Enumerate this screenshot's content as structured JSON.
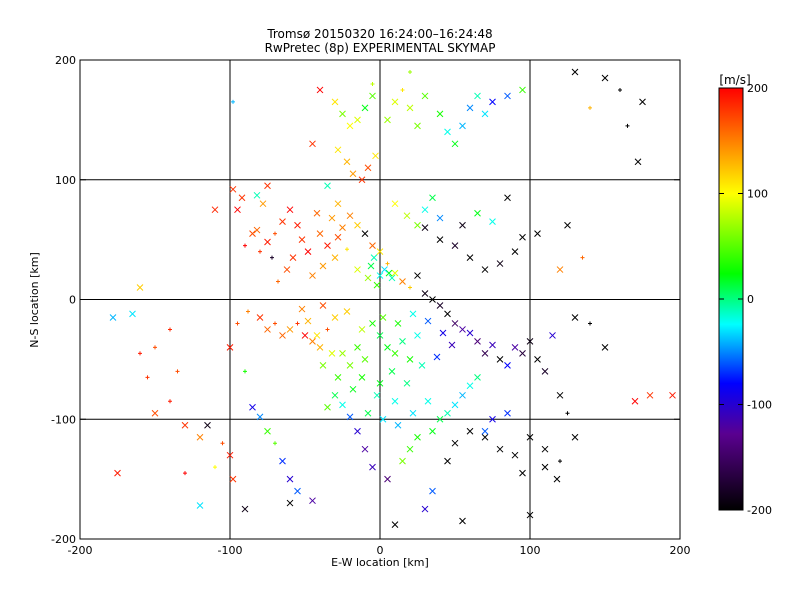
{
  "chart_data": {
    "type": "scatter",
    "title": "Tromsø 20150320 16:24:00–16:24:48",
    "subtitle": "RwPretec (8p) EXPERIMENTAL SKYMAP",
    "xlabel": "E-W location [km]",
    "ylabel": "N-S location [km]",
    "xlim": [
      -200,
      200
    ],
    "ylim": [
      -200,
      200
    ],
    "xticks": [
      "-200",
      "-100",
      "0",
      "100",
      "200"
    ],
    "yticks": [
      "-200",
      "-100",
      "0",
      "100",
      "200"
    ],
    "grid": true,
    "colorbar": {
      "label": "[m/s]",
      "range": [
        -200,
        200
      ],
      "ticks": [
        "200",
        "100",
        "0",
        "-100",
        "-200"
      ],
      "colormap": [
        "#000000",
        "#5a0090",
        "#0000ff",
        "#00ffff",
        "#00ff00",
        "#ffff00",
        "#ff0000"
      ]
    },
    "marker_types": [
      "x",
      "+"
    ],
    "points": [
      [
        -175,
        -145,
        190,
        "x"
      ],
      [
        -160,
        10,
        120,
        "x"
      ],
      [
        -178,
        -15,
        -40,
        "x"
      ],
      [
        -165,
        -12,
        -30,
        "x"
      ],
      [
        -140,
        -25,
        185,
        "+"
      ],
      [
        -150,
        -40,
        170,
        "+"
      ],
      [
        -135,
        -60,
        170,
        "+"
      ],
      [
        -130,
        -105,
        180,
        "x"
      ],
      [
        -120,
        -115,
        150,
        "x"
      ],
      [
        -110,
        75,
        185,
        "x"
      ],
      [
        -115,
        -105,
        -190,
        "x"
      ],
      [
        -120,
        -172,
        -30,
        "x"
      ],
      [
        -110,
        -140,
        100,
        "+"
      ],
      [
        -98,
        92,
        180,
        "x"
      ],
      [
        -95,
        75,
        200,
        "x"
      ],
      [
        -92,
        85,
        180,
        "x"
      ],
      [
        -82,
        87,
        -10,
        "x"
      ],
      [
        -78,
        80,
        140,
        "x"
      ],
      [
        -75,
        95,
        180,
        "x"
      ],
      [
        -85,
        55,
        170,
        "x"
      ],
      [
        -90,
        45,
        200,
        "+"
      ],
      [
        -80,
        40,
        180,
        "+"
      ],
      [
        -72,
        35,
        -180,
        "+"
      ],
      [
        -100,
        -40,
        190,
        "x"
      ],
      [
        -95,
        -20,
        170,
        "+"
      ],
      [
        -88,
        -10,
        150,
        "+"
      ],
      [
        -80,
        -15,
        180,
        "x"
      ],
      [
        -75,
        -25,
        160,
        "x"
      ],
      [
        -70,
        -20,
        170,
        "+"
      ],
      [
        -65,
        -30,
        160,
        "x"
      ],
      [
        -60,
        -25,
        140,
        "x"
      ],
      [
        -55,
        -20,
        180,
        "+"
      ],
      [
        -50,
        -30,
        200,
        "x"
      ],
      [
        -45,
        -35,
        150,
        "x"
      ],
      [
        -40,
        -40,
        130,
        "x"
      ],
      [
        -35,
        -25,
        170,
        "+"
      ],
      [
        -30,
        -15,
        120,
        "x"
      ],
      [
        -90,
        -60,
        30,
        "+"
      ],
      [
        -85,
        -90,
        -90,
        "x"
      ],
      [
        -80,
        -98,
        -50,
        "x"
      ],
      [
        -75,
        -110,
        40,
        "x"
      ],
      [
        -70,
        -120,
        50,
        "+"
      ],
      [
        -65,
        -135,
        -70,
        "x"
      ],
      [
        -60,
        -150,
        -100,
        "x"
      ],
      [
        -55,
        -160,
        -60,
        "x"
      ],
      [
        -90,
        -175,
        -190,
        "x"
      ],
      [
        -60,
        -170,
        -200,
        "x"
      ],
      [
        -45,
        -168,
        -120,
        "x"
      ],
      [
        -40,
        175,
        200,
        "x"
      ],
      [
        -45,
        130,
        180,
        "x"
      ],
      [
        -30,
        165,
        110,
        "x"
      ],
      [
        -25,
        155,
        60,
        "x"
      ],
      [
        -20,
        145,
        100,
        "x"
      ],
      [
        -15,
        150,
        90,
        "x"
      ],
      [
        -10,
        160,
        20,
        "x"
      ],
      [
        -5,
        170,
        50,
        "x"
      ],
      [
        -28,
        125,
        110,
        "x"
      ],
      [
        -22,
        115,
        130,
        "x"
      ],
      [
        -18,
        105,
        140,
        "x"
      ],
      [
        -12,
        100,
        180,
        "x"
      ],
      [
        -8,
        110,
        170,
        "x"
      ],
      [
        -3,
        120,
        110,
        "x"
      ],
      [
        5,
        150,
        70,
        "x"
      ],
      [
        10,
        165,
        90,
        "x"
      ],
      [
        15,
        175,
        110,
        "+"
      ],
      [
        20,
        160,
        80,
        "x"
      ],
      [
        25,
        145,
        60,
        "x"
      ],
      [
        30,
        170,
        50,
        "x"
      ],
      [
        40,
        155,
        30,
        "x"
      ],
      [
        45,
        140,
        -20,
        "x"
      ],
      [
        50,
        130,
        20,
        "x"
      ],
      [
        55,
        145,
        -40,
        "x"
      ],
      [
        60,
        160,
        -50,
        "x"
      ],
      [
        65,
        170,
        -10,
        "x"
      ],
      [
        70,
        155,
        -30,
        "x"
      ],
      [
        75,
        165,
        -80,
        "x"
      ],
      [
        85,
        170,
        -60,
        "x"
      ],
      [
        95,
        175,
        40,
        "x"
      ],
      [
        -35,
        95,
        -10,
        "x"
      ],
      [
        -28,
        80,
        130,
        "x"
      ],
      [
        -20,
        70,
        150,
        "x"
      ],
      [
        -15,
        62,
        120,
        "x"
      ],
      [
        -10,
        55,
        -200,
        "x"
      ],
      [
        -5,
        45,
        160,
        "x"
      ],
      [
        0,
        40,
        110,
        "x"
      ],
      [
        5,
        30,
        130,
        "+"
      ],
      [
        10,
        22,
        90,
        "x"
      ],
      [
        15,
        15,
        150,
        "x"
      ],
      [
        20,
        10,
        120,
        "+"
      ],
      [
        25,
        20,
        -200,
        "x"
      ],
      [
        30,
        5,
        -190,
        "x"
      ],
      [
        35,
        0,
        -200,
        "x"
      ],
      [
        40,
        -5,
        -180,
        "x"
      ],
      [
        45,
        -12,
        -200,
        "x"
      ],
      [
        50,
        -20,
        -150,
        "x"
      ],
      [
        55,
        -25,
        -120,
        "x"
      ],
      [
        60,
        -28,
        -100,
        "x"
      ],
      [
        65,
        -35,
        -140,
        "x"
      ],
      [
        70,
        -45,
        -160,
        "x"
      ],
      [
        75,
        -38,
        -110,
        "x"
      ],
      [
        80,
        -50,
        -200,
        "x"
      ],
      [
        85,
        -55,
        -80,
        "x"
      ],
      [
        90,
        -40,
        -120,
        "x"
      ],
      [
        95,
        -45,
        -170,
        "x"
      ],
      [
        100,
        -35,
        -190,
        "x"
      ],
      [
        105,
        -50,
        -200,
        "x"
      ],
      [
        110,
        -60,
        -180,
        "x"
      ],
      [
        115,
        -30,
        -100,
        "x"
      ],
      [
        30,
        60,
        -190,
        "x"
      ],
      [
        40,
        50,
        -200,
        "x"
      ],
      [
        50,
        45,
        -180,
        "x"
      ],
      [
        60,
        35,
        -200,
        "x"
      ],
      [
        70,
        25,
        -200,
        "x"
      ],
      [
        80,
        30,
        -190,
        "x"
      ],
      [
        90,
        40,
        -200,
        "x"
      ],
      [
        95,
        52,
        -200,
        "x"
      ],
      [
        85,
        85,
        -200,
        "x"
      ],
      [
        75,
        65,
        -20,
        "x"
      ],
      [
        65,
        72,
        20,
        "x"
      ],
      [
        55,
        62,
        -190,
        "x"
      ],
      [
        105,
        55,
        -200,
        "x"
      ],
      [
        125,
        62,
        -200,
        "x"
      ],
      [
        120,
        25,
        150,
        "x"
      ],
      [
        135,
        35,
        160,
        "+"
      ],
      [
        130,
        -15,
        -200,
        "x"
      ],
      [
        140,
        -20,
        -200,
        "+"
      ],
      [
        150,
        -40,
        -200,
        "x"
      ],
      [
        120,
        -80,
        -200,
        "x"
      ],
      [
        125,
        -95,
        -200,
        "+"
      ],
      [
        130,
        -115,
        -200,
        "x"
      ],
      [
        110,
        -140,
        -200,
        "x"
      ],
      [
        118,
        -150,
        -200,
        "x"
      ],
      [
        100,
        -180,
        -200,
        "x"
      ],
      [
        95,
        -145,
        -200,
        "x"
      ],
      [
        90,
        -130,
        -200,
        "x"
      ],
      [
        80,
        -125,
        -200,
        "x"
      ],
      [
        70,
        -115,
        -200,
        "x"
      ],
      [
        60,
        -110,
        -200,
        "x"
      ],
      [
        50,
        -120,
        -200,
        "x"
      ],
      [
        45,
        -135,
        -200,
        "x"
      ],
      [
        55,
        -185,
        -200,
        "x"
      ],
      [
        35,
        -160,
        -60,
        "x"
      ],
      [
        30,
        -175,
        -100,
        "x"
      ],
      [
        10,
        -188,
        -200,
        "x"
      ],
      [
        5,
        -150,
        -140,
        "x"
      ],
      [
        -5,
        -140,
        -110,
        "x"
      ],
      [
        -10,
        -125,
        -120,
        "x"
      ],
      [
        -15,
        -110,
        -100,
        "x"
      ],
      [
        -20,
        -98,
        -60,
        "x"
      ],
      [
        -25,
        -88,
        -20,
        "x"
      ],
      [
        -30,
        -80,
        10,
        "x"
      ],
      [
        -35,
        -90,
        50,
        "x"
      ],
      [
        15,
        -135,
        60,
        "x"
      ],
      [
        20,
        -125,
        40,
        "x"
      ],
      [
        25,
        -115,
        30,
        "x"
      ],
      [
        35,
        -110,
        20,
        "x"
      ],
      [
        40,
        -100,
        10,
        "x"
      ],
      [
        45,
        -95,
        -10,
        "x"
      ],
      [
        50,
        -88,
        -30,
        "x"
      ],
      [
        55,
        -80,
        -40,
        "x"
      ],
      [
        60,
        -72,
        -20,
        "x"
      ],
      [
        65,
        -65,
        0,
        "x"
      ],
      [
        70,
        -110,
        -60,
        "x"
      ],
      [
        75,
        -100,
        -90,
        "x"
      ],
      [
        85,
        -95,
        -70,
        "x"
      ],
      [
        100,
        -115,
        -200,
        "x"
      ],
      [
        110,
        -125,
        -200,
        "x"
      ],
      [
        120,
        -135,
        -200,
        "+"
      ],
      [
        -5,
        -20,
        30,
        "x"
      ],
      [
        0,
        -30,
        10,
        "x"
      ],
      [
        5,
        -40,
        20,
        "x"
      ],
      [
        10,
        -45,
        40,
        "x"
      ],
      [
        15,
        -35,
        0,
        "x"
      ],
      [
        20,
        -50,
        30,
        "x"
      ],
      [
        25,
        -30,
        -20,
        "x"
      ],
      [
        -10,
        -50,
        50,
        "x"
      ],
      [
        -15,
        -40,
        40,
        "x"
      ],
      [
        -20,
        -55,
        60,
        "x"
      ],
      [
        -25,
        -45,
        70,
        "x"
      ],
      [
        -12,
        -65,
        30,
        "x"
      ],
      [
        0,
        -70,
        20,
        "x"
      ],
      [
        8,
        -60,
        10,
        "x"
      ],
      [
        18,
        -70,
        0,
        "x"
      ],
      [
        28,
        -55,
        -10,
        "x"
      ],
      [
        -2,
        -80,
        -10,
        "x"
      ],
      [
        10,
        -85,
        -20,
        "x"
      ],
      [
        -8,
        -95,
        10,
        "x"
      ],
      [
        2,
        -100,
        -30,
        "x"
      ],
      [
        12,
        -105,
        -40,
        "x"
      ],
      [
        22,
        -95,
        -30,
        "x"
      ],
      [
        32,
        -85,
        -20,
        "x"
      ],
      [
        -18,
        -75,
        20,
        "x"
      ],
      [
        -28,
        -65,
        40,
        "x"
      ],
      [
        -38,
        -55,
        60,
        "x"
      ],
      [
        -32,
        -45,
        90,
        "x"
      ],
      [
        -42,
        -30,
        110,
        "x"
      ],
      [
        -48,
        -18,
        130,
        "x"
      ],
      [
        -52,
        -8,
        150,
        "x"
      ],
      [
        -38,
        -5,
        170,
        "x"
      ],
      [
        -22,
        -10,
        120,
        "x"
      ],
      [
        -12,
        -25,
        80,
        "x"
      ],
      [
        2,
        -15,
        50,
        "x"
      ],
      [
        12,
        -20,
        30,
        "x"
      ],
      [
        22,
        -12,
        -20,
        "x"
      ],
      [
        32,
        -18,
        -60,
        "x"
      ],
      [
        42,
        -28,
        -90,
        "x"
      ],
      [
        48,
        -38,
        -110,
        "x"
      ],
      [
        38,
        -48,
        -70,
        "x"
      ],
      [
        -58,
        35,
        180,
        "x"
      ],
      [
        -62,
        25,
        170,
        "x"
      ],
      [
        -68,
        15,
        160,
        "+"
      ],
      [
        -45,
        20,
        150,
        "x"
      ],
      [
        -38,
        28,
        140,
        "x"
      ],
      [
        -30,
        35,
        130,
        "x"
      ],
      [
        -22,
        42,
        110,
        "+"
      ],
      [
        -15,
        25,
        90,
        "x"
      ],
      [
        -8,
        18,
        70,
        "x"
      ],
      [
        -2,
        12,
        40,
        "x"
      ],
      [
        6,
        22,
        20,
        "x"
      ],
      [
        -4,
        35,
        -10,
        "x"
      ],
      [
        3,
        25,
        -30,
        "x"
      ],
      [
        -6,
        28,
        10,
        "x"
      ],
      [
        0,
        20,
        -20,
        "x"
      ],
      [
        8,
        18,
        -10,
        "x"
      ],
      [
        -48,
        40,
        200,
        "x"
      ],
      [
        -52,
        50,
        180,
        "x"
      ],
      [
        -40,
        55,
        160,
        "x"
      ],
      [
        -35,
        45,
        190,
        "x"
      ],
      [
        -28,
        52,
        170,
        "x"
      ],
      [
        -25,
        60,
        150,
        "x"
      ],
      [
        -32,
        68,
        140,
        "x"
      ],
      [
        -42,
        72,
        160,
        "x"
      ],
      [
        -55,
        62,
        190,
        "x"
      ],
      [
        -60,
        75,
        200,
        "x"
      ],
      [
        -65,
        65,
        180,
        "x"
      ],
      [
        -70,
        55,
        170,
        "+"
      ],
      [
        -75,
        48,
        190,
        "x"
      ],
      [
        -82,
        58,
        160,
        "x"
      ],
      [
        10,
        80,
        100,
        "x"
      ],
      [
        18,
        70,
        80,
        "x"
      ],
      [
        25,
        62,
        60,
        "x"
      ],
      [
        30,
        75,
        -20,
        "x"
      ],
      [
        35,
        85,
        10,
        "x"
      ],
      [
        40,
        68,
        -50,
        "x"
      ],
      [
        -100,
        -130,
        190,
        "x"
      ],
      [
        -105,
        -120,
        170,
        "+"
      ],
      [
        -98,
        -150,
        180,
        "x"
      ],
      [
        -130,
        -145,
        200,
        "+"
      ],
      [
        -140,
        -85,
        190,
        "+"
      ],
      [
        -150,
        -95,
        170,
        "x"
      ],
      [
        -155,
        -65,
        180,
        "+"
      ],
      [
        -160,
        -45,
        190,
        "+"
      ],
      [
        170,
        -85,
        200,
        "x"
      ],
      [
        180,
        -80,
        180,
        "x"
      ],
      [
        195,
        -80,
        190,
        "x"
      ],
      [
        175,
        165,
        -200,
        "x"
      ],
      [
        130,
        190,
        -200,
        "x"
      ],
      [
        150,
        185,
        -200,
        "x"
      ],
      [
        160,
        175,
        -200,
        "+"
      ],
      [
        165,
        145,
        -200,
        "+"
      ],
      [
        172,
        115,
        -200,
        "x"
      ],
      [
        140,
        160,
        130,
        "+"
      ],
      [
        -98,
        165,
        -40,
        "+"
      ],
      [
        -5,
        180,
        80,
        "+"
      ],
      [
        20,
        190,
        70,
        "+"
      ]
    ]
  }
}
